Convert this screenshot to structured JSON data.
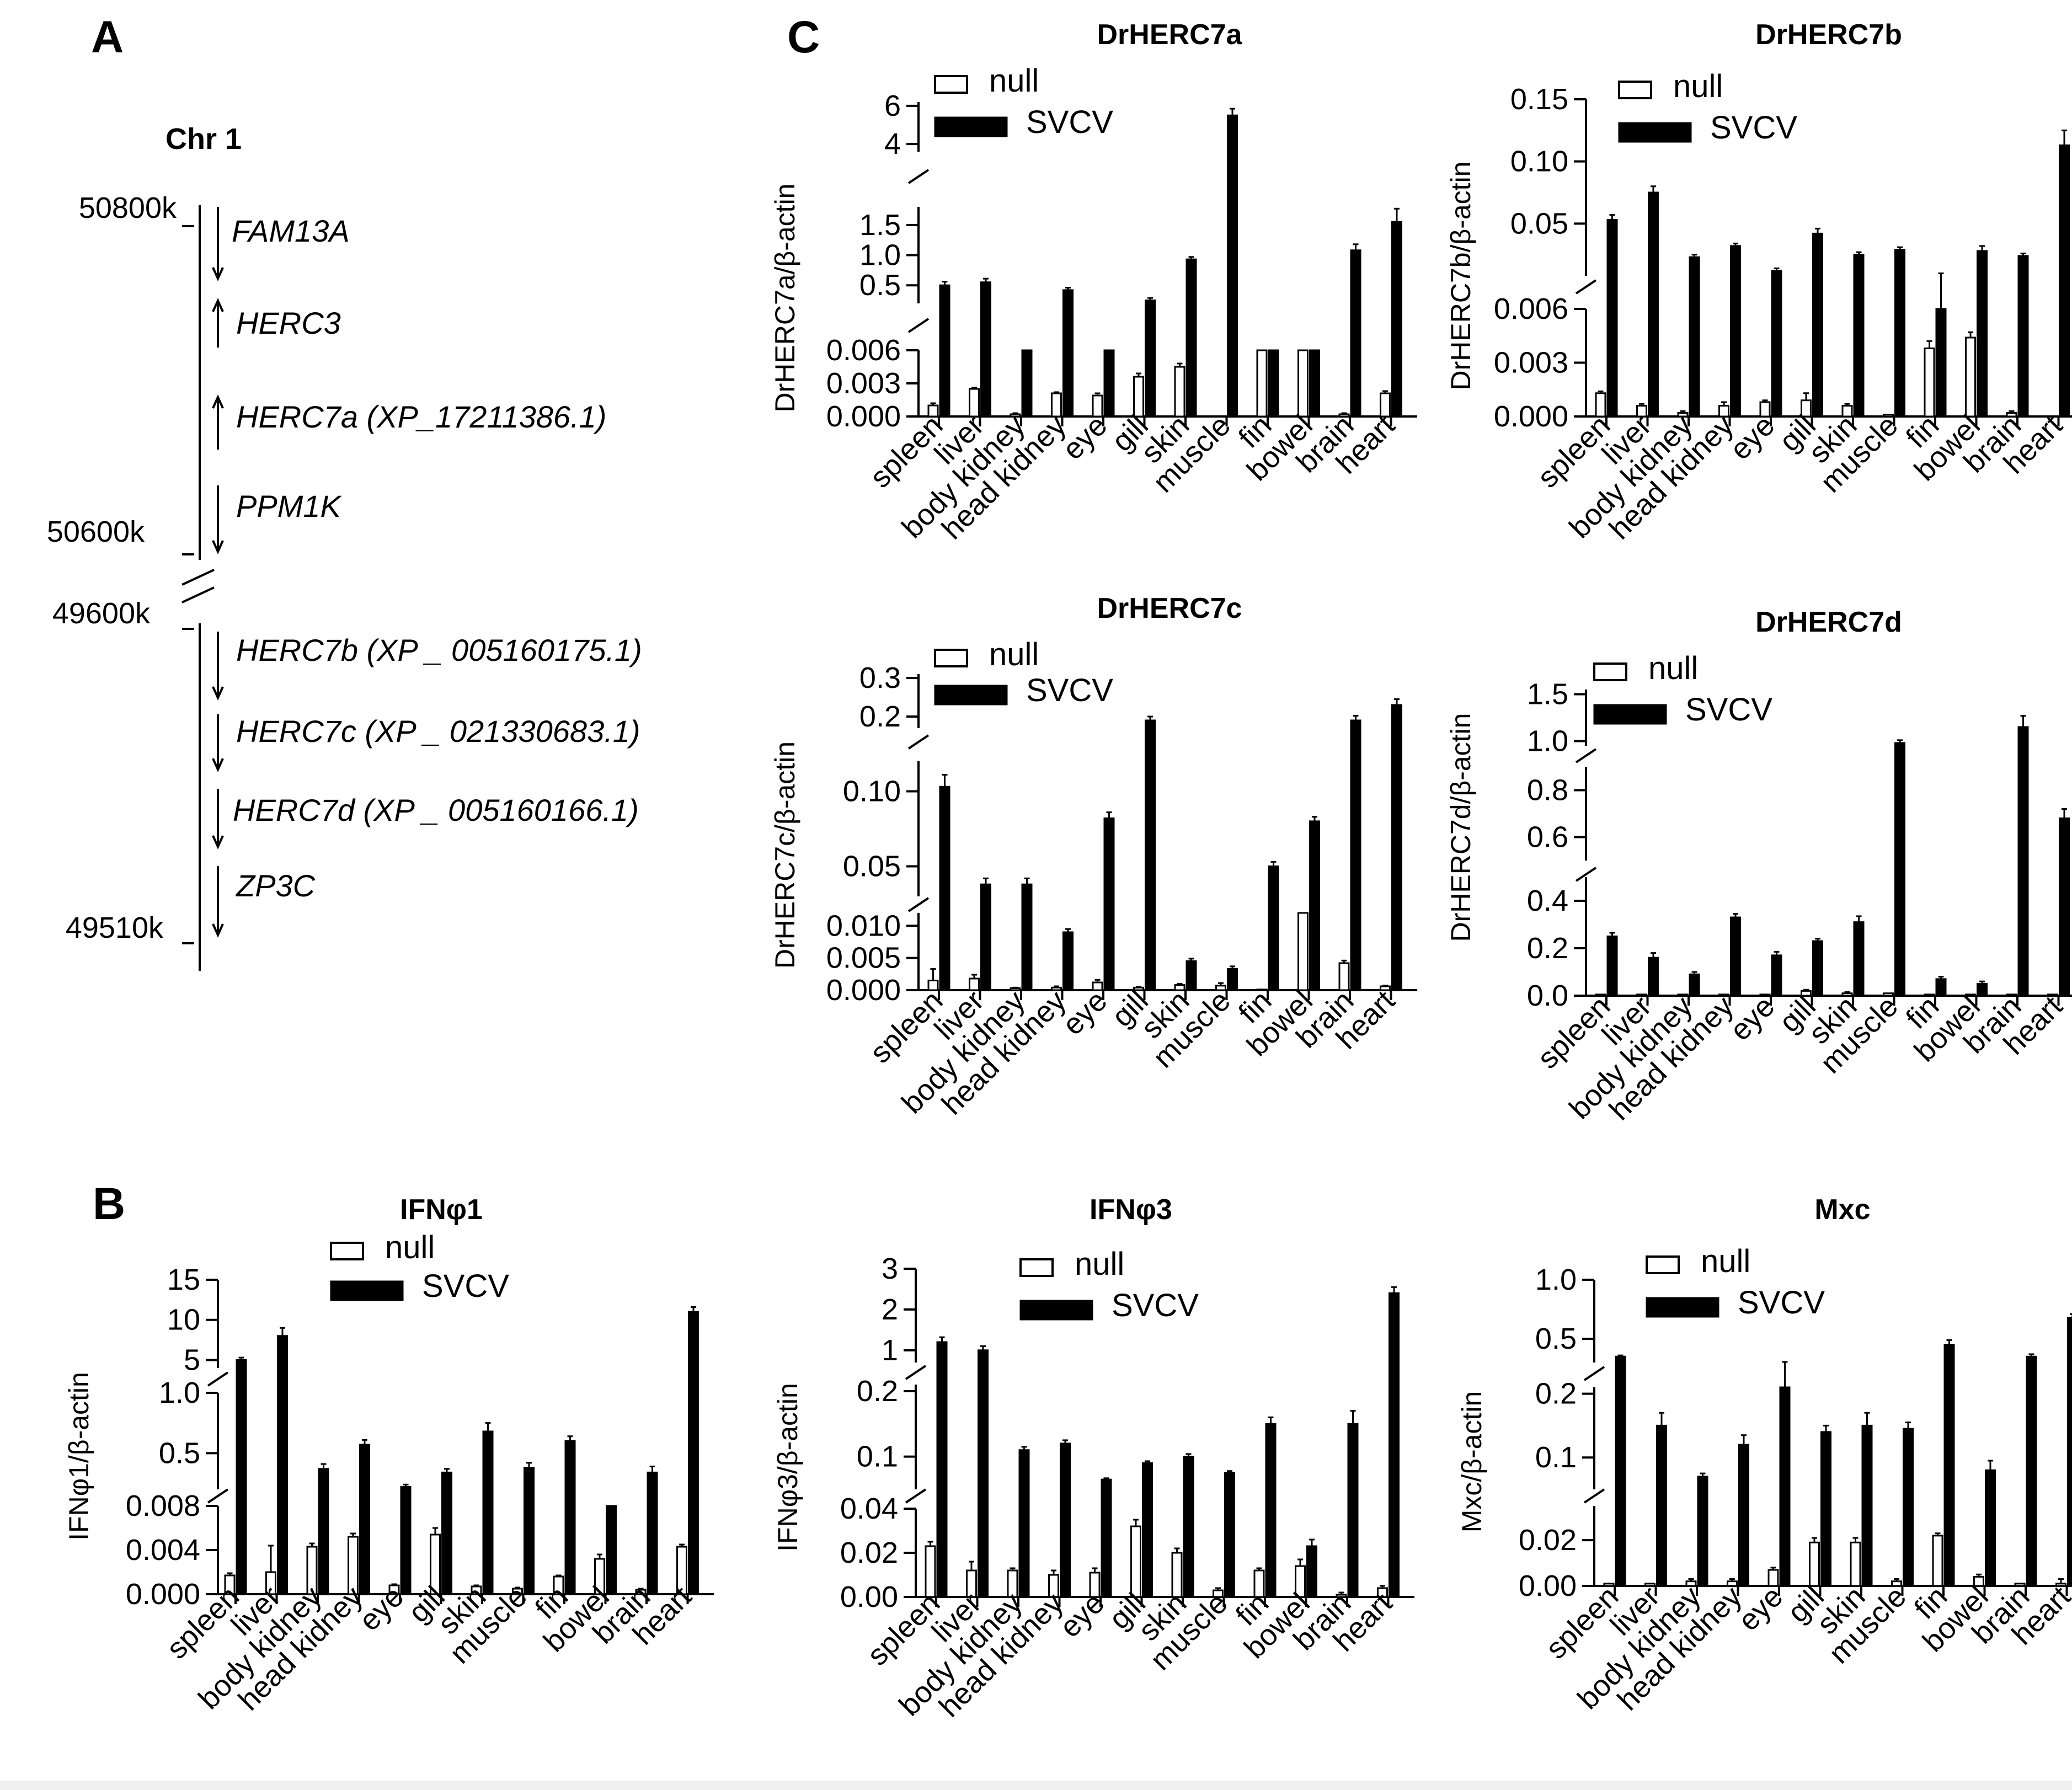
{
  "figure": {
    "panels": {
      "a": "A",
      "b": "B",
      "c": "C"
    }
  },
  "panel_a": {
    "chromosome": "Chr 1",
    "positions": [
      "50800k",
      "50600k",
      "49600k",
      "49510k"
    ],
    "genes": [
      {
        "name": "FAM13A",
        "strand": "down"
      },
      {
        "name": "HERC3",
        "strand": "up"
      },
      {
        "name": "HERC7a (XP_17211386.1)",
        "strand": "up"
      },
      {
        "name": "PPM1K",
        "strand": "down"
      },
      {
        "name": "HERC7b (XP _ 005160175.1)",
        "strand": "down"
      },
      {
        "name": "HERC7c (XP _ 021330683.1)",
        "strand": "down"
      },
      {
        "name": "HERC7d (XP _ 005160166.1)",
        "strand": "down"
      },
      {
        "name": "ZP3C",
        "strand": "down"
      }
    ]
  },
  "chart_data": [
    {
      "type": "bar",
      "title": "DrHERC7a",
      "ylabel": "DrHERC7a/β-actin",
      "categories": [
        "spleen",
        "liver",
        "body kidney",
        "head kidney",
        "eye",
        "gill",
        "skin",
        "muscle",
        "fin",
        "bowel",
        "brain",
        "heart"
      ],
      "legend": [
        "null",
        "SVCV"
      ],
      "segments": [
        {
          "min": 0,
          "max": 0.006,
          "ticks": [
            "0.000",
            "0.003",
            "0.006"
          ]
        },
        {
          "min": 0.2,
          "max": 1.8,
          "ticks": [
            "0.5",
            "1.0",
            "1.5"
          ]
        },
        {
          "min": 3.6,
          "max": 6.2,
          "ticks": [
            "4",
            "6"
          ]
        }
      ],
      "series": [
        {
          "name": "null",
          "values": [
            0.001,
            0.0025,
            0.0002,
            0.0021,
            0.0019,
            0.0036,
            0.0045,
            0,
            0.006,
            0.006,
            0.0002,
            0.0021
          ],
          "errors": [
            0.0002,
            0.0001,
            0.0001,
            0.0001,
            0.0002,
            0.0003,
            0.0003,
            0,
            0,
            0,
            0.0001,
            0.0002
          ]
        },
        {
          "name": "SVCV",
          "values": [
            0.5,
            0.55,
            0.05,
            0.42,
            0.15,
            0.25,
            0.93,
            5.5,
            0.05,
            0.15,
            1.08,
            1.55
          ],
          "errors": [
            0.06,
            0.06,
            0.01,
            0.04,
            0.02,
            0.04,
            0.04,
            0.35,
            0.01,
            0.02,
            0.1,
            0.22
          ]
        }
      ]
    },
    {
      "type": "bar",
      "title": "DrHERC7b",
      "ylabel": "DrHERC7b/β-actin",
      "categories": [
        "spleen",
        "liver",
        "body kidney",
        "head kidney",
        "eye",
        "gill",
        "skin",
        "muscle",
        "fin",
        "bowel",
        "brain",
        "heart"
      ],
      "legend": [
        "null",
        "SVCV"
      ],
      "segments": [
        {
          "min": 0,
          "max": 0.006,
          "ticks": [
            "0.000",
            "0.003",
            "0.006"
          ]
        },
        {
          "min": 0.008,
          "max": 0.15,
          "ticks": [
            "0.05",
            "0.10",
            "0.15"
          ]
        }
      ],
      "series": [
        {
          "name": "null",
          "values": [
            0.0013,
            0.0006,
            0.0002,
            0.0006,
            0.0008,
            0.0009,
            0.0006,
            0.0001,
            0.0038,
            0.0044,
            0.0002,
            0
          ],
          "errors": [
            0.0001,
            0.0001,
            0.0001,
            0.0002,
            0.0001,
            0.0004,
            0.0001,
            0,
            0.0004,
            0.0003,
            0.0001,
            0
          ]
        },
        {
          "name": "SVCV",
          "values": [
            0.053,
            0.075,
            0.023,
            0.032,
            0.012,
            0.042,
            0.025,
            0.029,
            0.008,
            0.028,
            0.024,
            0.113
          ],
          "errors": [
            0.004,
            0.005,
            0.002,
            0.002,
            0.002,
            0.004,
            0.002,
            0.002,
            0.002,
            0.004,
            0.002,
            0.012
          ]
        }
      ]
    },
    {
      "type": "bar",
      "title": "DrHERC7c",
      "ylabel": "DrHERC7c/β-actin",
      "categories": [
        "spleen",
        "liver",
        "body kidney",
        "head kidney",
        "eye",
        "gill",
        "skin",
        "muscle",
        "fin",
        "bowel",
        "brain",
        "heart"
      ],
      "legend": [
        "null",
        "SVCV"
      ],
      "segments": [
        {
          "min": 0,
          "max": 0.012,
          "ticks": [
            "0.000",
            "0.005",
            "0.010"
          ]
        },
        {
          "min": 0.03,
          "max": 0.12,
          "ticks": [
            "0.05",
            "0.10"
          ]
        },
        {
          "min": 0.17,
          "max": 0.31,
          "ticks": [
            "0.2",
            "0.3"
          ]
        }
      ],
      "series": [
        {
          "name": "null",
          "values": [
            0.0015,
            0.0018,
            0.0003,
            0.0004,
            0.0012,
            0.0004,
            0.0008,
            0.0007,
            0.0001,
            0.012,
            0.0042,
            0.0006
          ],
          "errors": [
            0.0018,
            0.0006,
            0.0001,
            0.0002,
            0.0004,
            0.0001,
            0.0002,
            0.0004,
            0,
            0,
            0.0004,
            0.0001
          ]
        },
        {
          "name": "SVCV",
          "values": [
            0.103,
            0.038,
            0.038,
            0.009,
            0.082,
            0.19,
            0.0045,
            0.0033,
            0.05,
            0.08,
            0.19,
            0.23
          ],
          "errors": [
            0.008,
            0.004,
            0.004,
            0.0005,
            0.004,
            0.01,
            0.0004,
            0.0004,
            0.003,
            0.003,
            0.012,
            0.015
          ]
        }
      ]
    },
    {
      "type": "bar",
      "title": "DrHERC7d",
      "ylabel": "DrHERC7d/β-actin",
      "categories": [
        "spleen",
        "liver",
        "body kidney",
        "head kidney",
        "eye",
        "gill",
        "skin",
        "muscle",
        "fin",
        "bowel",
        "brain",
        "heart"
      ],
      "legend": [
        "null",
        "SVCV"
      ],
      "segments": [
        {
          "min": 0,
          "max": 0.5,
          "ticks": [
            "0.0",
            "0.2",
            "0.4"
          ]
        },
        {
          "min": 0.5,
          "max": 0.9,
          "ticks": [
            "0.6",
            "0.8"
          ]
        },
        {
          "min": 0.95,
          "max": 1.55,
          "ticks": [
            "1.0",
            "1.5"
          ]
        }
      ],
      "series": [
        {
          "name": "null",
          "values": [
            0.005,
            0.005,
            0.005,
            0.005,
            0.005,
            0.02,
            0.01,
            0.01,
            0.005,
            0.005,
            0.005,
            0.005
          ],
          "errors": [
            0,
            0,
            0,
            0,
            0,
            0.005,
            0.005,
            0,
            0,
            0,
            0,
            0
          ]
        },
        {
          "name": "SVCV",
          "values": [
            0.25,
            0.16,
            0.09,
            0.33,
            0.17,
            0.23,
            0.31,
            0.98,
            0.07,
            0.05,
            1.15,
            0.68
          ],
          "errors": [
            0.015,
            0.02,
            0.01,
            0.015,
            0.015,
            0.01,
            0.025,
            0.03,
            0.01,
            0.01,
            0.12,
            0.04
          ]
        }
      ]
    },
    {
      "type": "bar",
      "title": "IFNφ1",
      "ylabel": "IFNφ1/β-actin",
      "categories": [
        "spleen",
        "liver",
        "body kidney",
        "head kidney",
        "eye",
        "gill",
        "skin",
        "muscle",
        "fin",
        "bowel",
        "brain",
        "heart"
      ],
      "legend": [
        "null",
        "SVCV"
      ],
      "segments": [
        {
          "min": 0,
          "max": 0.008,
          "ticks": [
            "0.000",
            "0.004",
            "0.008"
          ]
        },
        {
          "min": 0.2,
          "max": 1.0,
          "ticks": [
            "0.5",
            "1.0"
          ]
        },
        {
          "min": 4,
          "max": 15,
          "ticks": [
            "5",
            "10",
            "15"
          ]
        }
      ],
      "series": [
        {
          "name": "null",
          "values": [
            0.0017,
            0.002,
            0.0043,
            0.0052,
            0.0008,
            0.0054,
            0.0007,
            0.0005,
            0.0016,
            0.0032,
            0.0004,
            0.0043
          ],
          "errors": [
            0.0002,
            0.0024,
            0.0003,
            0.0003,
            0.0001,
            0.0006,
            0.0001,
            0.0001,
            0.0001,
            0.0004,
            0.0001,
            0.0002
          ]
        },
        {
          "name": "SVCV",
          "values": [
            5.0,
            8.0,
            0.37,
            0.57,
            0.22,
            0.34,
            0.68,
            0.38,
            0.6,
            0.18,
            0.34,
            11.0
          ],
          "errors": [
            0.3,
            1.0,
            0.04,
            0.04,
            0.02,
            0.03,
            0.07,
            0.04,
            0.04,
            0.01,
            0.05,
            0.6
          ]
        }
      ]
    },
    {
      "type": "bar",
      "title": "IFNφ3",
      "ylabel": "IFNφ3/β-actin",
      "categories": [
        "spleen",
        "liver",
        "body kidney",
        "head kidney",
        "eye",
        "gill",
        "skin",
        "muscle",
        "fin",
        "bowel",
        "brain",
        "heart"
      ],
      "legend": [
        "null",
        "SVCV"
      ],
      "segments": [
        {
          "min": 0,
          "max": 0.04,
          "ticks": [
            "0.00",
            "0.02",
            "0.04"
          ]
        },
        {
          "min": 0.05,
          "max": 0.21,
          "ticks": [
            "0.1",
            "0.2"
          ]
        },
        {
          "min": 0.7,
          "max": 3,
          "ticks": [
            "1",
            "2",
            "3"
          ]
        }
      ],
      "series": [
        {
          "name": "null",
          "values": [
            0.023,
            0.012,
            0.012,
            0.01,
            0.011,
            0.032,
            0.02,
            0.003,
            0.012,
            0.014,
            0.001,
            0.004
          ],
          "errors": [
            0.002,
            0.004,
            0.001,
            0.002,
            0.002,
            0.003,
            0.002,
            0.001,
            0.001,
            0.003,
            0.001,
            0.001
          ]
        },
        {
          "name": "SVCV",
          "values": [
            1.2,
            1.0,
            0.11,
            0.12,
            0.065,
            0.09,
            0.1,
            0.075,
            0.15,
            0.023,
            0.15,
            2.4
          ],
          "errors": [
            0.12,
            0.1,
            0.005,
            0.005,
            0.002,
            0.003,
            0.004,
            0.003,
            0.01,
            0.003,
            0.02,
            0.15
          ]
        }
      ]
    },
    {
      "type": "bar",
      "title": "Mxc",
      "ylabel": "Mxc/β-actin",
      "categories": [
        "spleen",
        "liver",
        "body kidney",
        "head kidney",
        "eye",
        "gill",
        "skin",
        "muscle",
        "fin",
        "bowel",
        "brain",
        "heart"
      ],
      "legend": [
        "null",
        "SVCV"
      ],
      "segments": [
        {
          "min": 0,
          "max": 0.035,
          "ticks": [
            "0.00",
            "0.02"
          ]
        },
        {
          "min": 0.05,
          "max": 0.21,
          "ticks": [
            "0.1",
            "0.2"
          ]
        },
        {
          "min": 0.3,
          "max": 1.0,
          "ticks": [
            "0.5",
            "1.0"
          ]
        }
      ],
      "series": [
        {
          "name": "null",
          "values": [
            0.001,
            0.001,
            0.002,
            0.002,
            0.007,
            0.019,
            0.019,
            0.002,
            0.022,
            0.004,
            0.001,
            0.001
          ],
          "errors": [
            0,
            0,
            0.001,
            0.001,
            0.001,
            0.002,
            0.002,
            0.001,
            0.001,
            0.001,
            0,
            0.002
          ]
        },
        {
          "name": "SVCV",
          "values": [
            0.35,
            0.15,
            0.07,
            0.12,
            0.3,
            0.14,
            0.15,
            0.145,
            0.45,
            0.08,
            0.35,
            0.68
          ],
          "errors": [
            0.01,
            0.02,
            0.005,
            0.015,
            0.005,
            0.01,
            0.02,
            0.01,
            0.04,
            0.015,
            0.02,
            0.03
          ]
        }
      ]
    }
  ]
}
